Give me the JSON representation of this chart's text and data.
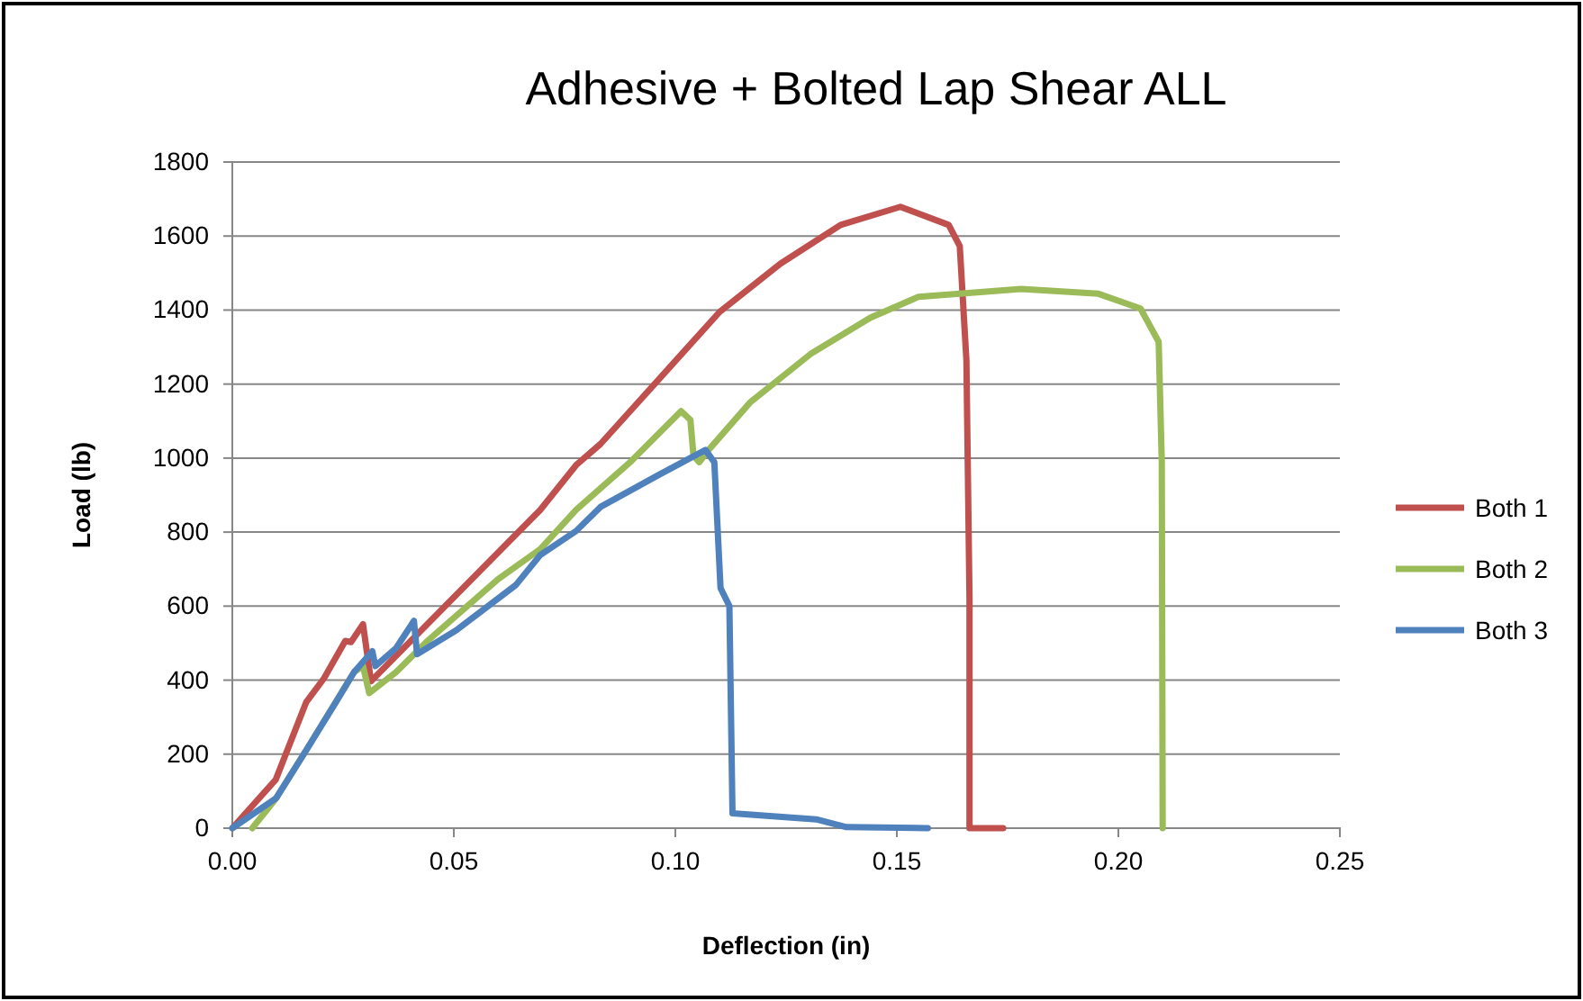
{
  "chart_data": {
    "type": "line",
    "title": "Adhesive + Bolted Lap Shear ALL",
    "xlabel": "Deflection (in)",
    "ylabel": "Load (lb)",
    "xlim": [
      0,
      0.25
    ],
    "xticks": [
      {
        "value": 0,
        "label": "0.00"
      },
      {
        "value": 0.05,
        "label": "0.05"
      },
      {
        "value": 0.1,
        "label": "0.10"
      },
      {
        "value": 0.15,
        "label": "0.15"
      },
      {
        "value": 0.2,
        "label": "0.20"
      },
      {
        "value": 0.25,
        "label": "0.25"
      }
    ],
    "ylim": [
      0,
      1800
    ],
    "yticks": [
      0,
      200,
      400,
      600,
      800,
      1000,
      1200,
      1400,
      1600,
      1800
    ],
    "grid": "y",
    "legend": "right",
    "marker": "none",
    "line_style": "solid",
    "series": [
      {
        "name": "Both 1",
        "color": "#c0504d",
        "x": [
          0,
          0.0098,
          0.0167,
          0.0207,
          0.0255,
          0.0268,
          0.0295,
          0.0313,
          0.0695,
          0.0776,
          0.0831,
          0.0966,
          0.11,
          0.1237,
          0.1373,
          0.1508,
          0.1617,
          0.1642,
          0.1657,
          0.1664,
          0.1664,
          0.174
        ],
        "values": [
          0,
          131,
          341,
          405,
          506,
          503,
          551,
          397,
          860,
          981,
          1038,
          1217,
          1395,
          1525,
          1630,
          1679,
          1630,
          1573,
          1265,
          618,
          0,
          0
        ]
      },
      {
        "name": "Both 2",
        "color": "#9bbb59",
        "x": [
          0.0045,
          0.0099,
          0.0167,
          0.0234,
          0.0275,
          0.0295,
          0.0309,
          0.037,
          0.0438,
          0.06,
          0.0695,
          0.0776,
          0.0898,
          0.1013,
          0.1034,
          0.1041,
          0.1054,
          0.1075,
          0.117,
          0.1305,
          0.144,
          0.1549,
          0.1642,
          0.178,
          0.1955,
          0.205,
          0.2091,
          0.2098,
          0.21
        ],
        "values": [
          0,
          81,
          211,
          null,
          422,
          438,
          365,
          422,
          503,
          673,
          754,
          860,
          989,
          1127,
          1103,
          1006,
          989,
          1022,
          1152,
          1281,
          1379,
          1436,
          1444,
          1457,
          1444,
          1404,
          1314,
          989,
          0
        ]
      },
      {
        "name": "Both 3",
        "color": "#4f81bd",
        "x": [
          0,
          0.0099,
          0.0167,
          0.0234,
          0.0275,
          0.0316,
          0.0323,
          0.037,
          0.041,
          0.0417,
          0.0506,
          0.064,
          0.0695,
          0.0776,
          0.0831,
          0.0966,
          0.1068,
          0.1088,
          0.1102,
          0.1122,
          0.1129,
          0.1318,
          0.1386,
          0.157
        ],
        "values": [
          0,
          81,
          211,
          341,
          422,
          478,
          438,
          487,
          560,
          470,
          535,
          657,
          738,
          803,
          868,
          957,
          1022,
          989,
          649,
          600,
          40,
          24,
          3,
          0
        ]
      }
    ]
  }
}
